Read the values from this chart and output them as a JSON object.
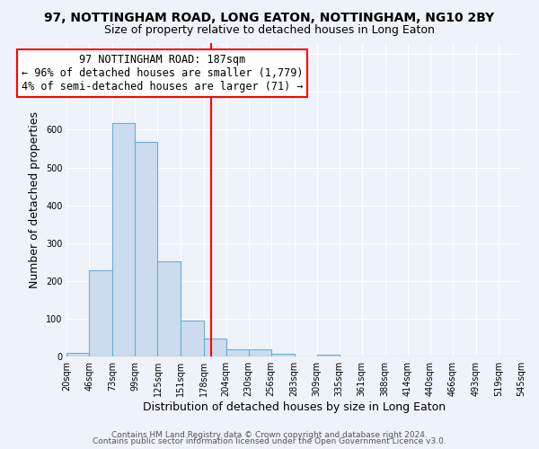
{
  "title": "97, NOTTINGHAM ROAD, LONG EATON, NOTTINGHAM, NG10 2BY",
  "subtitle": "Size of property relative to detached houses in Long Eaton",
  "xlabel": "Distribution of detached houses by size in Long Eaton",
  "ylabel": "Number of detached properties",
  "bin_edges": [
    20,
    46,
    73,
    99,
    125,
    151,
    178,
    204,
    230,
    256,
    283,
    309,
    335,
    361,
    388,
    414,
    440,
    466,
    493,
    519,
    545
  ],
  "bin_counts": [
    10,
    228,
    617,
    568,
    253,
    96,
    47,
    20,
    20,
    7,
    1,
    5,
    0,
    0,
    0,
    0,
    0,
    0,
    0,
    0
  ],
  "bar_color": "#ccdcee",
  "bar_edge_color": "#6baed6",
  "vline_x": 187,
  "vline_color": "red",
  "annotation_title": "97 NOTTINGHAM ROAD: 187sqm",
  "annotation_line1": "← 96% of detached houses are smaller (1,779)",
  "annotation_line2": "4% of semi-detached houses are larger (71) →",
  "annotation_box_facecolor": "white",
  "annotation_box_edgecolor": "red",
  "ylim": [
    0,
    830
  ],
  "xlim": [
    20,
    545
  ],
  "tick_labels": [
    "20sqm",
    "46sqm",
    "73sqm",
    "99sqm",
    "125sqm",
    "151sqm",
    "178sqm",
    "204sqm",
    "230sqm",
    "256sqm",
    "283sqm",
    "309sqm",
    "335sqm",
    "361sqm",
    "388sqm",
    "414sqm",
    "440sqm",
    "466sqm",
    "493sqm",
    "519sqm",
    "545sqm"
  ],
  "footer1": "Contains HM Land Registry data © Crown copyright and database right 2024.",
  "footer2": "Contains public sector information licensed under the Open Government Licence v3.0.",
  "background_color": "#eef2f9",
  "grid_color": "#ffffff",
  "title_fontsize": 10,
  "subtitle_fontsize": 9,
  "axis_label_fontsize": 9,
  "tick_fontsize": 7,
  "footer_fontsize": 6.5,
  "annotation_fontsize": 8.5
}
